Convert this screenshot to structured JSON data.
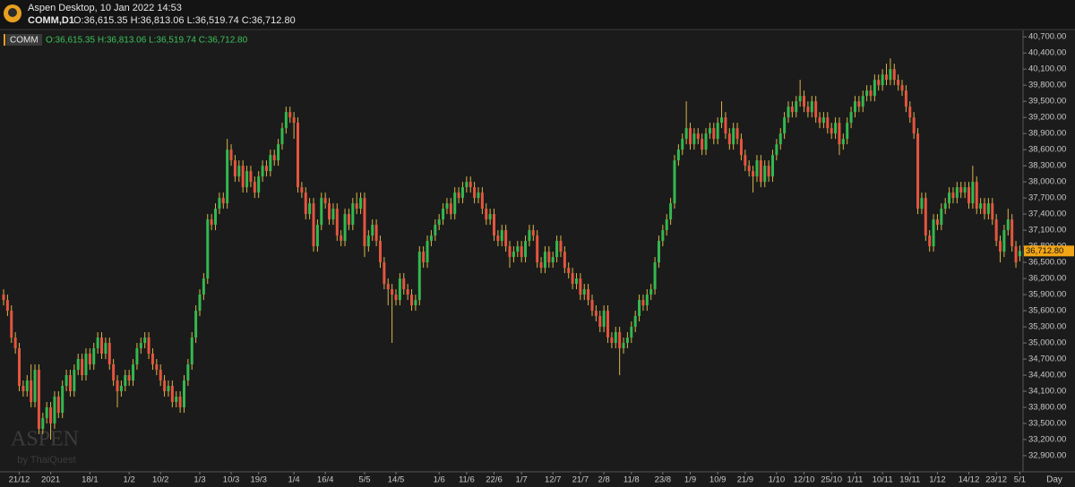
{
  "header": {
    "app_title": "Aspen Desktop, 10 Jan 2022 14:53",
    "symbol": "COMM,D1",
    "ohlc": "O:36,615.35 H:36,813.06 L:36,519.74 C:36,712.80"
  },
  "legend": {
    "symbol": "COMM",
    "ohlc": "O:36,615.35 H:36,813.06 L:36,519.74 C:36,712.80"
  },
  "watermark": {
    "brand": "ASPEN",
    "by": "by ThaiQuest"
  },
  "chart_data": {
    "type": "candlestick",
    "x_unit": "Day",
    "up_color": "#34b84f",
    "down_color": "#e5553f",
    "wick_color": "#d9b54a",
    "last_price": {
      "value": 36712.8,
      "label": "36,712.80"
    },
    "last_price_color": "#f2a516",
    "ylim": [
      32600,
      40820
    ],
    "yticks": [
      {
        "value": 32900,
        "label": "32,900.00"
      },
      {
        "value": 33200,
        "label": "33,200.00"
      },
      {
        "value": 33500,
        "label": "33,500.00"
      },
      {
        "value": 33800,
        "label": "33,800.00"
      },
      {
        "value": 34100,
        "label": "34,100.00"
      },
      {
        "value": 34400,
        "label": "34,400.00"
      },
      {
        "value": 34700,
        "label": "34,700.00"
      },
      {
        "value": 35000,
        "label": "35,000.00"
      },
      {
        "value": 35300,
        "label": "35,300.00"
      },
      {
        "value": 35600,
        "label": "35,600.00"
      },
      {
        "value": 35900,
        "label": "35,900.00"
      },
      {
        "value": 36200,
        "label": "36,200.00"
      },
      {
        "value": 36500,
        "label": "36,500.00"
      },
      {
        "value": 36800,
        "label": "36,800.00"
      },
      {
        "value": 37100,
        "label": "37,100.00"
      },
      {
        "value": 37400,
        "label": "37,400.00"
      },
      {
        "value": 37700,
        "label": "37,700.00"
      },
      {
        "value": 38000,
        "label": "38,000.00"
      },
      {
        "value": 38300,
        "label": "38,300.00"
      },
      {
        "value": 38600,
        "label": "38,600.00"
      },
      {
        "value": 38900,
        "label": "38,900.00"
      },
      {
        "value": 39200,
        "label": "39,200.00"
      },
      {
        "value": 39500,
        "label": "39,500.00"
      },
      {
        "value": 39800,
        "label": "39,800.00"
      },
      {
        "value": 40100,
        "label": "40,100.00"
      },
      {
        "value": 40400,
        "label": "40,400.00"
      },
      {
        "value": 40700,
        "label": "40,700.00"
      }
    ],
    "categories": [
      null,
      null,
      null,
      null,
      "21/12",
      null,
      null,
      null,
      null,
      null,
      null,
      null,
      "2021",
      null,
      null,
      null,
      null,
      null,
      null,
      null,
      null,
      null,
      "18/1",
      null,
      null,
      null,
      null,
      null,
      null,
      null,
      null,
      null,
      "1/2",
      null,
      null,
      null,
      null,
      null,
      null,
      null,
      "10/2",
      null,
      null,
      null,
      null,
      null,
      null,
      null,
      null,
      null,
      "1/3",
      null,
      null,
      null,
      null,
      null,
      null,
      null,
      "10/3",
      null,
      null,
      null,
      null,
      null,
      null,
      "19/3",
      null,
      null,
      null,
      null,
      null,
      null,
      null,
      null,
      "1/4",
      null,
      null,
      null,
      null,
      null,
      null,
      null,
      "16/4",
      null,
      null,
      null,
      null,
      null,
      null,
      null,
      null,
      null,
      "5/5",
      null,
      null,
      null,
      null,
      null,
      null,
      null,
      "14/5",
      null,
      null,
      null,
      null,
      null,
      null,
      null,
      null,
      null,
      null,
      "1/6",
      null,
      null,
      null,
      null,
      null,
      null,
      "11/6",
      null,
      null,
      null,
      null,
      null,
      null,
      "22/6",
      null,
      null,
      null,
      null,
      null,
      null,
      "1/7",
      null,
      null,
      null,
      null,
      null,
      null,
      null,
      "12/7",
      null,
      null,
      null,
      null,
      null,
      null,
      "21/7",
      null,
      null,
      null,
      null,
      null,
      "2/8",
      null,
      null,
      null,
      null,
      null,
      null,
      "11/8",
      null,
      null,
      null,
      null,
      null,
      null,
      null,
      "23/8",
      null,
      null,
      null,
      null,
      null,
      null,
      "1/9",
      null,
      null,
      null,
      null,
      null,
      null,
      "10/9",
      null,
      null,
      null,
      null,
      null,
      null,
      "21/9",
      null,
      null,
      null,
      null,
      null,
      null,
      null,
      "1/10",
      null,
      null,
      null,
      null,
      null,
      null,
      "12/10",
      null,
      null,
      null,
      null,
      null,
      null,
      "25/10",
      null,
      null,
      null,
      null,
      null,
      "1/11",
      null,
      null,
      null,
      null,
      null,
      null,
      "10/11",
      null,
      null,
      null,
      null,
      null,
      null,
      "19/11",
      null,
      null,
      null,
      null,
      null,
      null,
      "1/12",
      null,
      null,
      null,
      null,
      null,
      null,
      null,
      "14/12",
      null,
      null,
      null,
      null,
      null,
      null,
      "23/12",
      null,
      null,
      null,
      null,
      null,
      "5/1"
    ],
    "open": [
      35900,
      35800,
      35600,
      35100,
      34900,
      34200,
      34100,
      34300,
      33900,
      34500,
      33400,
      33600,
      33800,
      33500,
      34000,
      33700,
      34200,
      34400,
      34100,
      34500,
      34700,
      34400,
      34800,
      34600,
      34900,
      35100,
      34800,
      35000,
      34600,
      34300,
      34100,
      34200,
      34400,
      34300,
      34600,
      34900,
      35000,
      35100,
      34800,
      34600,
      34500,
      34300,
      34100,
      34200,
      33900,
      34000,
      33800,
      34300,
      34600,
      35100,
      35600,
      35900,
      36200,
      37300,
      37200,
      37500,
      37700,
      37600,
      38600,
      38400,
      38100,
      38300,
      37900,
      38200,
      38000,
      37800,
      38100,
      38300,
      38200,
      38500,
      38400,
      38700,
      39000,
      39300,
      39200,
      39100,
      37900,
      37800,
      37400,
      37600,
      36800,
      37200,
      37700,
      37600,
      37300,
      37500,
      37000,
      36900,
      37400,
      37200,
      37600,
      37500,
      37700,
      36800,
      37000,
      37200,
      36900,
      36500,
      36100,
      36000,
      35900,
      35800,
      36200,
      36000,
      35900,
      35700,
      35800,
      36700,
      36500,
      36900,
      37000,
      37200,
      37300,
      37500,
      37600,
      37400,
      37800,
      37700,
      37900,
      38000,
      37900,
      37700,
      37800,
      37500,
      37300,
      37400,
      37000,
      36900,
      37100,
      36800,
      36600,
      36700,
      36800,
      36600,
      36900,
      37100,
      37000,
      36500,
      36400,
      36700,
      36500,
      36600,
      36900,
      36700,
      36400,
      36300,
      36100,
      36200,
      35900,
      36000,
      35800,
      35600,
      35500,
      35300,
      35600,
      35100,
      35000,
      35200,
      34900,
      35000,
      35100,
      35300,
      35500,
      35800,
      35700,
      35900,
      36000,
      36500,
      36900,
      37100,
      37300,
      37600,
      38400,
      38600,
      38800,
      39000,
      38700,
      38900,
      38800,
      38600,
      38900,
      39000,
      38800,
      39100,
      39200,
      38900,
      38700,
      39000,
      38800,
      38500,
      38300,
      38200,
      38100,
      38400,
      38000,
      38300,
      38100,
      38500,
      38700,
      38900,
      39200,
      39400,
      39300,
      39500,
      39600,
      39400,
      39300,
      39500,
      39200,
      39100,
      39200,
      39000,
      38900,
      39100,
      38700,
      38800,
      39100,
      39300,
      39500,
      39400,
      39600,
      39700,
      39600,
      39900,
      39800,
      40000,
      39900,
      40100,
      39900,
      39800,
      39700,
      39400,
      39200,
      38900,
      37500,
      37700,
      37000,
      36800,
      37300,
      37200,
      37500,
      37600,
      37800,
      37700,
      37900,
      37800,
      37900,
      37600,
      38000,
      37500,
      37600,
      37400,
      37600,
      37300,
      36900,
      36700,
      37100,
      37300,
      36800,
      36615.35
    ],
    "high": [
      36000,
      35900,
      35700,
      35200,
      35000,
      34300,
      34400,
      34600,
      34600,
      34600,
      33700,
      33900,
      33900,
      34100,
      34100,
      34300,
      34500,
      34500,
      34600,
      34800,
      34800,
      34900,
      34900,
      35000,
      35200,
      35200,
      35100,
      35100,
      34700,
      34400,
      34300,
      34500,
      34500,
      34700,
      35000,
      35100,
      35200,
      35200,
      34900,
      34700,
      34600,
      34400,
      34300,
      34300,
      34100,
      34100,
      34400,
      34700,
      35200,
      35700,
      36000,
      36300,
      37400,
      37400,
      37600,
      37800,
      37800,
      38800,
      38700,
      38500,
      38400,
      38400,
      38300,
      38300,
      38100,
      38200,
      38400,
      38400,
      38600,
      38600,
      38800,
      39100,
      39400,
      39400,
      39300,
      39200,
      38000,
      37900,
      37700,
      37700,
      37300,
      37800,
      37800,
      37700,
      37600,
      37600,
      37100,
      37500,
      37500,
      37700,
      37800,
      37800,
      37800,
      37100,
      37300,
      37300,
      37000,
      36600,
      36200,
      36100,
      36000,
      36300,
      36300,
      36100,
      36000,
      35900,
      36800,
      36800,
      37000,
      37100,
      37300,
      37400,
      37600,
      37700,
      37700,
      37900,
      37900,
      38000,
      38100,
      38100,
      38000,
      37900,
      37900,
      37600,
      37500,
      37500,
      37100,
      37200,
      37200,
      36900,
      36800,
      36900,
      36900,
      37000,
      37200,
      37200,
      37100,
      36600,
      36800,
      36800,
      36700,
      37000,
      37000,
      36800,
      36500,
      36400,
      36300,
      36300,
      36100,
      36100,
      35900,
      35700,
      35600,
      35700,
      35700,
      35200,
      35300,
      35300,
      35100,
      35200,
      35400,
      35600,
      35900,
      35900,
      36000,
      36100,
      36600,
      37000,
      37200,
      37400,
      37700,
      38500,
      38700,
      38900,
      39500,
      39100,
      39000,
      39000,
      38900,
      39000,
      39100,
      39100,
      39200,
      39500,
      39300,
      39000,
      39100,
      39100,
      38900,
      38600,
      38400,
      38300,
      38500,
      38500,
      38400,
      38400,
      38600,
      38800,
      39000,
      39300,
      39500,
      39500,
      39600,
      39900,
      39700,
      39500,
      39600,
      39600,
      39300,
      39300,
      39300,
      39100,
      39200,
      39200,
      38900,
      39200,
      39400,
      39600,
      39600,
      39700,
      39800,
      39800,
      40000,
      40000,
      40100,
      40200,
      40300,
      40200,
      40000,
      39900,
      39800,
      39500,
      39300,
      39000,
      37800,
      37800,
      37100,
      37400,
      37400,
      37600,
      37700,
      37900,
      37900,
      38000,
      38000,
      38000,
      38000,
      38300,
      38100,
      37700,
      37700,
      37700,
      37700,
      37400,
      37000,
      37200,
      37500,
      37400,
      36900,
      36813.06
    ],
    "low": [
      35700,
      35500,
      35000,
      34800,
      34100,
      34000,
      34000,
      33800,
      33800,
      33300,
      33300,
      33500,
      33200,
      33400,
      33600,
      33600,
      34100,
      34000,
      34000,
      34400,
      34300,
      34300,
      34500,
      34500,
      34800,
      34700,
      34700,
      34500,
      34200,
      33800,
      34000,
      34100,
      34200,
      34200,
      34500,
      34800,
      34900,
      34700,
      34500,
      34400,
      34200,
      34000,
      34000,
      33800,
      33800,
      33700,
      33700,
      34200,
      34500,
      35000,
      35500,
      35800,
      36100,
      37100,
      37100,
      37400,
      37500,
      37500,
      38300,
      38000,
      38000,
      37800,
      37800,
      37900,
      37700,
      37700,
      38000,
      38100,
      38100,
      38300,
      38300,
      38600,
      38900,
      39100,
      38800,
      37800,
      37700,
      37300,
      37300,
      36700,
      36700,
      37100,
      37500,
      37200,
      37200,
      36900,
      36800,
      36800,
      37100,
      37100,
      37400,
      37400,
      36600,
      36700,
      36900,
      36800,
      36400,
      36000,
      35700,
      35000,
      35700,
      35700,
      35900,
      35800,
      35600,
      35600,
      35700,
      36400,
      36400,
      36800,
      36900,
      37100,
      37200,
      37400,
      37300,
      37300,
      37600,
      37600,
      37800,
      37800,
      37600,
      37600,
      37400,
      37200,
      37200,
      36900,
      36800,
      36800,
      36700,
      36400,
      36500,
      36600,
      36500,
      36500,
      36800,
      36900,
      36400,
      36300,
      36300,
      36400,
      36400,
      36500,
      36600,
      36300,
      36200,
      36000,
      36000,
      35800,
      35800,
      35700,
      35500,
      35400,
      35200,
      35200,
      35000,
      34900,
      34900,
      34400,
      34800,
      34900,
      35000,
      35200,
      35400,
      35600,
      35600,
      35800,
      35900,
      36400,
      36800,
      37000,
      37200,
      37500,
      38300,
      38500,
      38700,
      38600,
      38600,
      38700,
      38500,
      38500,
      38800,
      38700,
      38700,
      39000,
      38800,
      38600,
      38600,
      38700,
      38400,
      38200,
      38100,
      37800,
      38000,
      37900,
      37900,
      38000,
      38000,
      38400,
      38600,
      38800,
      39100,
      39200,
      39200,
      39400,
      39300,
      39200,
      39200,
      39100,
      39000,
      39000,
      38900,
      38800,
      38800,
      38500,
      38600,
      38700,
      39000,
      39200,
      39300,
      39300,
      39500,
      39500,
      39500,
      39700,
      39700,
      39800,
      39800,
      39800,
      39700,
      39600,
      39300,
      39100,
      38800,
      37400,
      37400,
      36900,
      36700,
      36700,
      37100,
      37100,
      37400,
      37500,
      37600,
      37600,
      37700,
      37700,
      37500,
      37500,
      37400,
      37400,
      37300,
      37300,
      37200,
      36800,
      36500,
      36600,
      37000,
      36700,
      36400,
      36519.74
    ],
    "close": [
      35800,
      35600,
      35100,
      34900,
      34200,
      34100,
      34300,
      33900,
      34500,
      33400,
      33600,
      33800,
      33500,
      34000,
      33700,
      34200,
      34400,
      34100,
      34500,
      34700,
      34400,
      34800,
      34600,
      34900,
      35100,
      34800,
      35000,
      34600,
      34300,
      34100,
      34200,
      34400,
      34300,
      34600,
      34900,
      35000,
      35100,
      34800,
      34600,
      34500,
      34300,
      34100,
      34200,
      33900,
      34000,
      33800,
      34300,
      34600,
      35100,
      35600,
      35900,
      36200,
      37300,
      37200,
      37500,
      37700,
      37600,
      38600,
      38400,
      38100,
      38300,
      37900,
      38200,
      38000,
      37800,
      38100,
      38300,
      38200,
      38500,
      38400,
      38700,
      39000,
      39300,
      39200,
      39100,
      37900,
      37800,
      37400,
      37600,
      36800,
      37200,
      37700,
      37600,
      37300,
      37500,
      37000,
      36900,
      37400,
      37200,
      37600,
      37500,
      37700,
      36800,
      37000,
      37200,
      36900,
      36500,
      36100,
      36000,
      35900,
      35800,
      36200,
      36000,
      35900,
      35700,
      35800,
      36700,
      36500,
      36900,
      37000,
      37200,
      37300,
      37500,
      37600,
      37400,
      37800,
      37700,
      37900,
      38000,
      37900,
      37700,
      37800,
      37500,
      37300,
      37400,
      37000,
      36900,
      37100,
      36800,
      36600,
      36700,
      36800,
      36600,
      36900,
      37100,
      37000,
      36500,
      36400,
      36700,
      36500,
      36600,
      36900,
      36700,
      36400,
      36300,
      36100,
      36200,
      35900,
      36000,
      35800,
      35600,
      35500,
      35300,
      35600,
      35100,
      35000,
      35200,
      34900,
      35000,
      35100,
      35300,
      35500,
      35800,
      35700,
      35900,
      36000,
      36500,
      36900,
      37100,
      37300,
      37600,
      38400,
      38600,
      38800,
      39000,
      38700,
      38900,
      38800,
      38600,
      38900,
      39000,
      38800,
      39100,
      39200,
      38900,
      38700,
      39000,
      38800,
      38500,
      38300,
      38200,
      38100,
      38400,
      38000,
      38300,
      38100,
      38500,
      38700,
      38900,
      39200,
      39400,
      39300,
      39500,
      39600,
      39400,
      39300,
      39500,
      39200,
      39100,
      39200,
      39000,
      38900,
      39100,
      38700,
      38800,
      39100,
      39300,
      39500,
      39400,
      39600,
      39700,
      39600,
      39900,
      39800,
      40000,
      39900,
      40100,
      39900,
      39800,
      39700,
      39400,
      39200,
      38900,
      37500,
      37700,
      37000,
      36800,
      37300,
      37200,
      37500,
      37600,
      37800,
      37700,
      37900,
      37800,
      37900,
      37600,
      38000,
      37500,
      37600,
      37400,
      37600,
      37300,
      36900,
      36700,
      37100,
      37300,
      36800,
      36500,
      36712.8
    ]
  }
}
